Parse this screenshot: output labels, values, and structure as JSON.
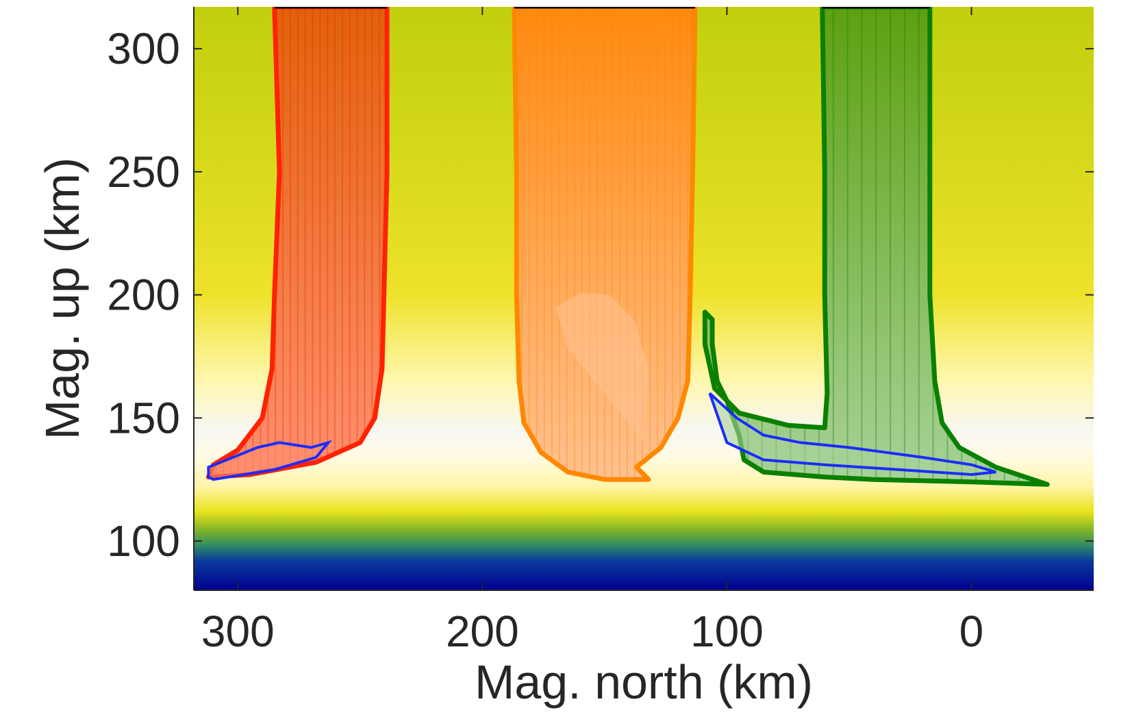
{
  "chart_data": {
    "type": "heatmap",
    "title": "",
    "xlabel": "Mag. north (km)",
    "ylabel": "Mag. up (km)",
    "xlim": [
      318,
      -50
    ],
    "ylim": [
      80,
      317
    ],
    "x_reversed": true,
    "xticks": [
      300,
      200,
      100,
      0
    ],
    "yticks": [
      100,
      150,
      200,
      250,
      300
    ],
    "grid": false,
    "background_profile": {
      "description": "background field vs altitude (km)",
      "stops": [
        {
          "alt": 80,
          "color": "#00008f"
        },
        {
          "alt": 92,
          "color": "#0a3a9c"
        },
        {
          "alt": 98,
          "color": "#2d8a66"
        },
        {
          "alt": 104,
          "color": "#7ab22a"
        },
        {
          "alt": 112,
          "color": "#e8e41c"
        },
        {
          "alt": 122,
          "color": "#fff5a8"
        },
        {
          "alt": 135,
          "color": "#fffbe6"
        },
        {
          "alt": 145,
          "color": "#f7f7f2"
        },
        {
          "alt": 165,
          "color": "#fff7b0"
        },
        {
          "alt": 200,
          "color": "#eee22a"
        },
        {
          "alt": 260,
          "color": "#d4d818"
        },
        {
          "alt": 317,
          "color": "#c2cf0e"
        }
      ]
    },
    "series": [
      {
        "name": "red bundle",
        "color": "#ff2200",
        "fill_top": "#e0620a",
        "fill_bottom": "#ff9070",
        "outline": [
          [
            285,
            317
          ],
          [
            283,
            250
          ],
          [
            285,
            200
          ],
          [
            286,
            170
          ],
          [
            290,
            150
          ],
          [
            300,
            137
          ],
          [
            310,
            131
          ],
          [
            312,
            126
          ],
          [
            295,
            127
          ],
          [
            268,
            132
          ],
          [
            250,
            140
          ],
          [
            244,
            150
          ],
          [
            241,
            170
          ],
          [
            239,
            250
          ],
          [
            239,
            317
          ]
        ],
        "inner_region": [
          [
            312,
            130
          ],
          [
            292,
            138
          ],
          [
            283,
            140
          ],
          [
            270,
            138
          ],
          [
            263,
            140
          ],
          [
            268,
            134
          ],
          [
            285,
            129
          ],
          [
            310,
            125
          ],
          [
            312,
            126
          ]
        ]
      },
      {
        "name": "orange bundle",
        "color": "#ff8800",
        "fill_top": "#ff8a10",
        "fill_bottom": "#ffc190",
        "outline": [
          [
            187,
            317
          ],
          [
            186,
            250
          ],
          [
            186,
            200
          ],
          [
            185,
            165
          ],
          [
            183,
            148
          ],
          [
            176,
            136
          ],
          [
            165,
            128
          ],
          [
            150,
            125
          ],
          [
            132,
            125
          ],
          [
            137,
            130
          ],
          [
            127,
            138
          ],
          [
            120,
            150
          ],
          [
            116,
            165
          ],
          [
            115,
            200
          ],
          [
            114,
            250
          ],
          [
            113,
            317
          ]
        ],
        "inner_region": [
          [
            170,
            195
          ],
          [
            160,
            201
          ],
          [
            148,
            200
          ],
          [
            138,
            190
          ],
          [
            132,
            170
          ],
          [
            134,
            140
          ],
          [
            150,
            160
          ],
          [
            165,
            178
          ]
        ]
      },
      {
        "name": "green bundle",
        "color": "#0a8000",
        "fill_top": "#5ea010",
        "fill_bottom": "#a8d29a",
        "outline": [
          [
            61,
            317
          ],
          [
            60,
            250
          ],
          [
            60,
            200
          ],
          [
            59,
            160
          ],
          [
            60,
            146
          ],
          [
            75,
            147
          ],
          [
            95,
            152
          ],
          [
            105,
            162
          ],
          [
            109,
            180
          ],
          [
            109,
            193
          ],
          [
            106,
            190
          ],
          [
            106,
            180
          ],
          [
            104,
            165
          ],
          [
            100,
            157
          ],
          [
            95,
            143
          ],
          [
            93,
            133
          ],
          [
            85,
            128
          ],
          [
            60,
            126
          ],
          [
            40,
            125
          ],
          [
            0,
            124
          ],
          [
            -31,
            123
          ],
          [
            -10,
            130
          ],
          [
            5,
            138
          ],
          [
            12,
            148
          ],
          [
            15,
            165
          ],
          [
            17,
            200
          ],
          [
            17,
            250
          ],
          [
            17,
            317
          ]
        ],
        "inner_region": [
          [
            107,
            160
          ],
          [
            96,
            150
          ],
          [
            85,
            143
          ],
          [
            70,
            140
          ],
          [
            50,
            138
          ],
          [
            20,
            134
          ],
          [
            0,
            131
          ],
          [
            -10,
            128
          ],
          [
            0,
            127
          ],
          [
            30,
            129
          ],
          [
            60,
            131
          ],
          [
            85,
            133
          ],
          [
            100,
            140
          ]
        ]
      }
    ]
  }
}
